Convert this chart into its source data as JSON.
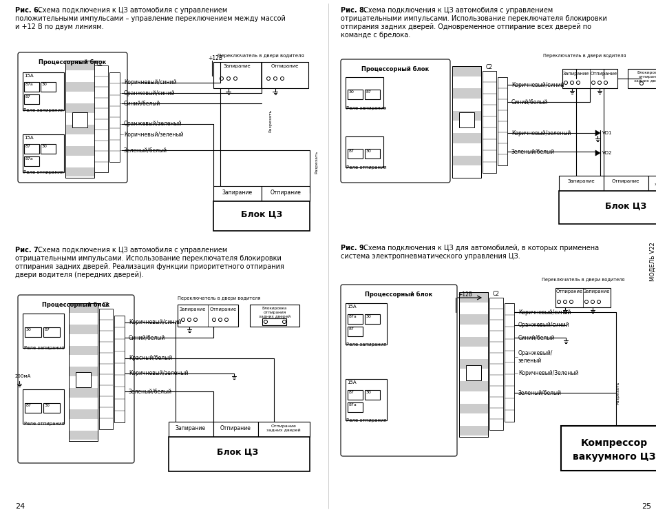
{
  "bg_color": "#ffffff",
  "page_width": 9.54,
  "page_height": 7.43,
  "dpi": 100,
  "fig6_bold": "Рис. 6.",
  "fig6_text": " Схема подключения к ЦЗ автомобиля с управлением",
  "fig6_line2": "положительными импульсами – управление переключением между массой",
  "fig6_line3": "и +12 В по двум линиям.",
  "fig7_bold": "Рис. 7.",
  "fig7_text": " Схема подключения к ЦЗ автомобиля с управлением",
  "fig7_line2": "отрицательными импульсами. Использование переключателя блокировки",
  "fig7_line3": "отпирания задних дверей. Реализация функции приоритетного отпирания",
  "fig7_line4": "двери водителя (передних дверей).",
  "fig8_bold": "Рис. 8.",
  "fig8_text": " Схема подключения к ЦЗ автомобиля с управлением",
  "fig8_line2": "отрицательными импульсами. Использование переключателя блокировки",
  "fig8_line3": "отпирания задних дверей. Одновременное отпирание всех дверей по",
  "fig8_line4": "команде с брелока.",
  "fig9_bold": "Рис. 9.",
  "fig9_text": " Схема подключения к ЦЗ для автомобилей, в которых применена",
  "fig9_line2": "система электропневматического управления ЦЗ.",
  "page_left": "24",
  "page_right": "25",
  "model_text": "МОДЕЛЬ V22"
}
